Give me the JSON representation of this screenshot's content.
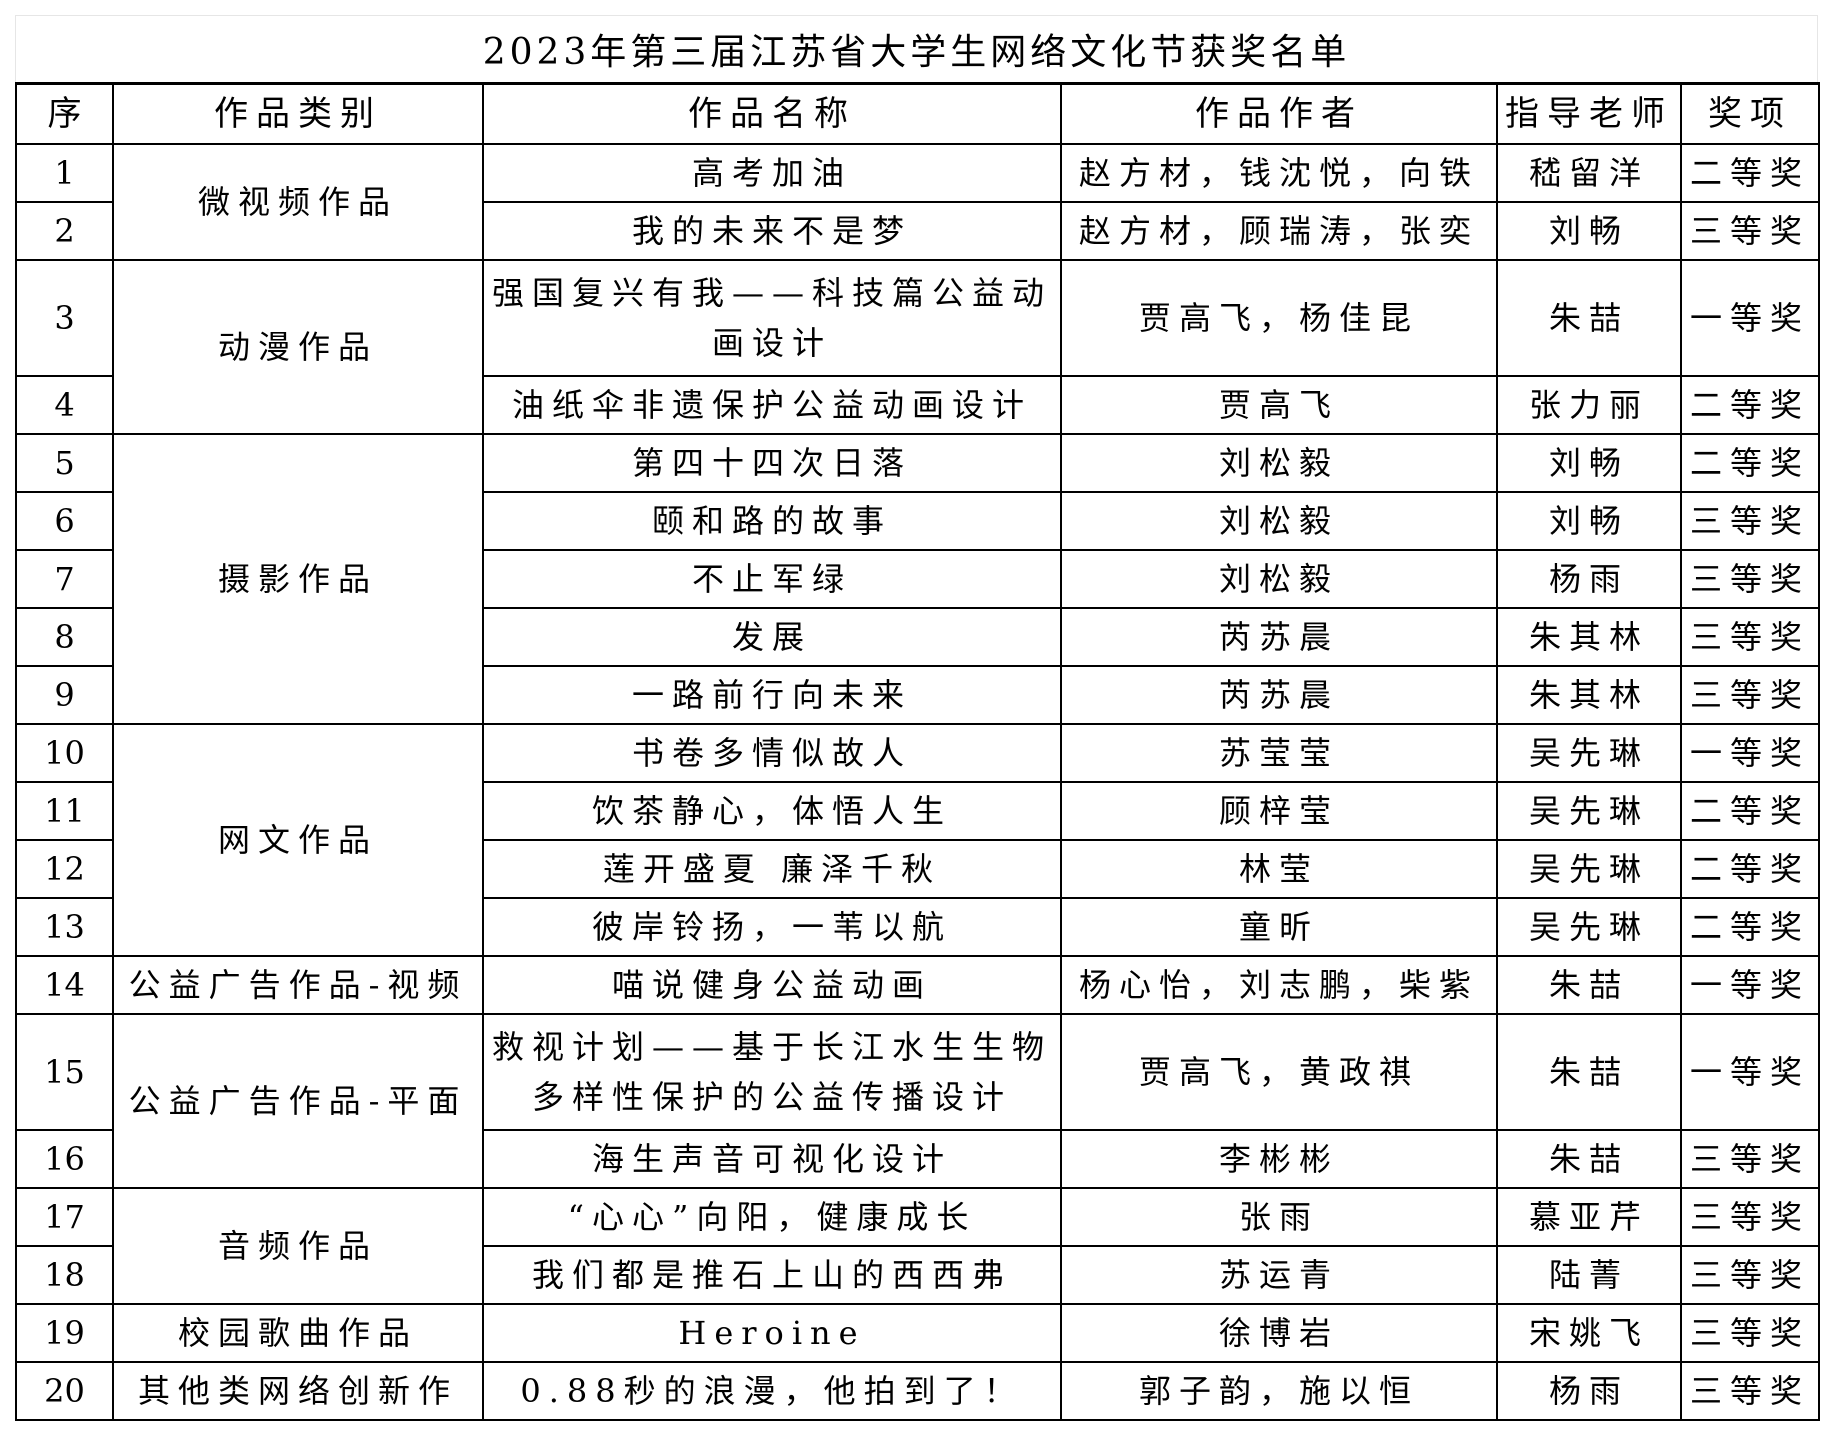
{
  "title": "2023年第三届江苏省大学生网络文化节获奖名单",
  "headers": [
    "序",
    "作品类别",
    "作品名称",
    "作品作者",
    "指导老师",
    "奖项"
  ],
  "categories": [
    "微视频作品",
    "动漫作品",
    "摄影作品",
    "网文作品",
    "公益广告作品-视频",
    "公益广告作品-平面",
    "音频作品",
    "校园歌曲作品",
    "其他类网络创新作"
  ],
  "rows": [
    {
      "no": "1",
      "name": "高考加油",
      "author": "赵方材，钱沈悦，向铁",
      "teacher": "嵇留洋",
      "award": "二等奖"
    },
    {
      "no": "2",
      "name": "我的未来不是梦",
      "author": "赵方材，顾瑞涛，张奕",
      "teacher": "刘畅",
      "award": "三等奖"
    },
    {
      "no": "3",
      "name": "强国复兴有我——科技篇公益动画设计",
      "author": "贾高飞，杨佳昆",
      "teacher": "朱喆",
      "award": "一等奖"
    },
    {
      "no": "4",
      "name": "油纸伞非遗保护公益动画设计",
      "author": "贾高飞",
      "teacher": "张力丽",
      "award": "二等奖"
    },
    {
      "no": "5",
      "name": "第四十四次日落",
      "author": "刘松毅",
      "teacher": "刘畅",
      "award": "二等奖"
    },
    {
      "no": "6",
      "name": "颐和路的故事",
      "author": "刘松毅",
      "teacher": "刘畅",
      "award": "三等奖"
    },
    {
      "no": "7",
      "name": "不止军绿",
      "author": "刘松毅",
      "teacher": "杨雨",
      "award": "三等奖"
    },
    {
      "no": "8",
      "name": "发展",
      "author": "芮苏晨",
      "teacher": "朱其林",
      "award": "三等奖"
    },
    {
      "no": "9",
      "name": "一路前行向未来",
      "author": "芮苏晨",
      "teacher": "朱其林",
      "award": "三等奖"
    },
    {
      "no": "10",
      "name": "书卷多情似故人",
      "author": "苏莹莹",
      "teacher": "吴先琳",
      "award": "一等奖"
    },
    {
      "no": "11",
      "name": "饮茶静心，体悟人生",
      "author": "顾梓莹",
      "teacher": "吴先琳",
      "award": "二等奖"
    },
    {
      "no": "12",
      "name": "莲开盛夏 廉泽千秋",
      "author": "林莹",
      "teacher": "吴先琳",
      "award": "二等奖"
    },
    {
      "no": "13",
      "name": "彼岸铃扬，一苇以航",
      "author": "童昕",
      "teacher": "吴先琳",
      "award": "二等奖"
    },
    {
      "no": "14",
      "name": "喵说健身公益动画",
      "author": "杨心怡，刘志鹏，柴紫",
      "teacher": "朱喆",
      "award": "一等奖"
    },
    {
      "no": "15",
      "name": "救视计划——基于长江水生生物多样性保护的公益传播设计",
      "author": "贾高飞，黄政祺",
      "teacher": "朱喆",
      "award": "一等奖"
    },
    {
      "no": "16",
      "name": "海生声音可视化设计",
      "author": "李彬彬",
      "teacher": "朱喆",
      "award": "三等奖"
    },
    {
      "no": "17",
      "name": "“心心”向阳，健康成长",
      "author": "张雨",
      "teacher": "慕亚芹",
      "award": "三等奖"
    },
    {
      "no": "18",
      "name": "我们都是推石上山的西西弗",
      "author": "苏运青",
      "teacher": "陆菁",
      "award": "三等奖"
    },
    {
      "no": "19",
      "name": "Heroine",
      "author": "徐博岩",
      "teacher": "宋姚飞",
      "award": "三等奖"
    },
    {
      "no": "20",
      "name": "0.88秒的浪漫，他拍到了！",
      "author": "郭子韵，施以恒",
      "teacher": "杨雨",
      "award": "三等奖"
    }
  ]
}
